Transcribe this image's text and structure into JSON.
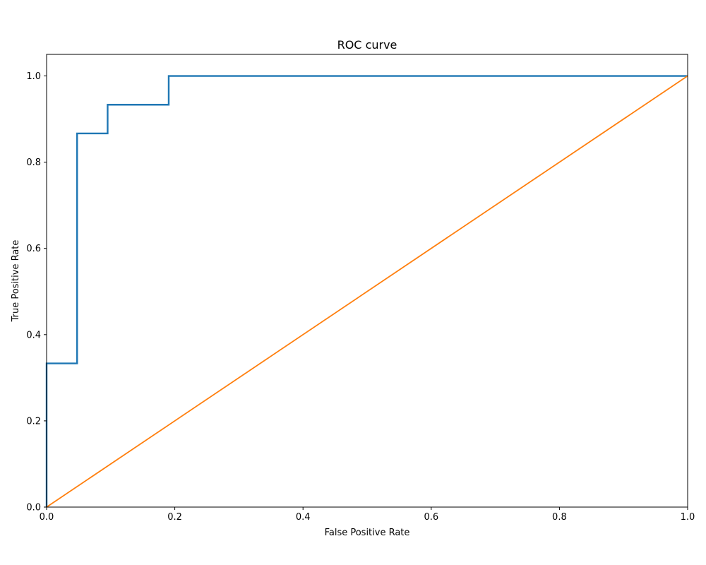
{
  "chart_data": {
    "type": "line",
    "title": "ROC curve",
    "xlabel": "False Positive Rate",
    "ylabel": "True Positive Rate",
    "xlim": [
      0.0,
      1.0
    ],
    "ylim": [
      0.0,
      1.05
    ],
    "xticks": [
      "0.0",
      "0.2",
      "0.4",
      "0.6",
      "0.8",
      "1.0"
    ],
    "yticks": [
      "0.0",
      "0.2",
      "0.4",
      "0.6",
      "0.8",
      "1.0"
    ],
    "grid": false,
    "series": [
      {
        "color": "#1f77b4",
        "x": [
          0.0,
          0.0,
          0.0,
          0.0476,
          0.0476,
          0.0952,
          0.0952,
          0.1905,
          0.1905,
          1.0
        ],
        "y": [
          0.0,
          0.0,
          0.3333,
          0.3333,
          0.8667,
          0.8667,
          0.9333,
          0.9333,
          1.0,
          1.0
        ]
      },
      {
        "color": "#ff7f0e",
        "x": [
          0.0,
          1.0
        ],
        "y": [
          0.0,
          1.0
        ]
      }
    ]
  }
}
